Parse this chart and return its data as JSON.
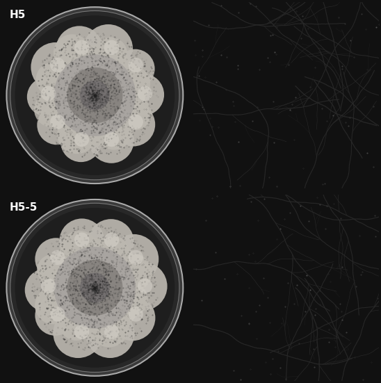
{
  "figsize": [
    5.48,
    5.51
  ],
  "dpi": 100,
  "labels": [
    "H5",
    "H5-5"
  ],
  "label_fontsize": 11,
  "label_color": "white",
  "bg_color": "#111111",
  "colony_bg": "#0a0a0a",
  "dish_ring_color": "#aaaaaa",
  "dish_inner_bg": "#1c1c1c",
  "colony_lobe_color": "#bcb8b0",
  "colony_lobe_alpha": 0.92,
  "colony_inner_color": "#909090",
  "colony_center_color": "#707070",
  "micro_bg": "#e8e6e2",
  "hyphae_color": "#2a2a2a",
  "divider_color": "#000000",
  "grid_wspace": 0.03,
  "grid_hspace": 0.03
}
